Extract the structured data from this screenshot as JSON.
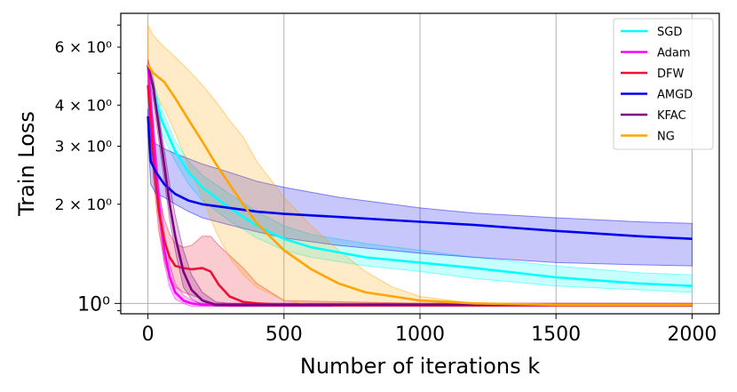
{
  "chart_data": {
    "type": "line",
    "title": "",
    "xlabel": "Number of iterations k",
    "ylabel": "Train Loss",
    "yscale": "log",
    "xlim": [
      -100,
      2100
    ],
    "ylim": [
      0.93,
      7.6
    ],
    "grid": true,
    "legend_position": "top-right",
    "x_ticks": [
      {
        "value": 0,
        "label": "0"
      },
      {
        "value": 500,
        "label": "500"
      },
      {
        "value": 1000,
        "label": "1000"
      },
      {
        "value": 1500,
        "label": "1500"
      },
      {
        "value": 2000,
        "label": "2000"
      }
    ],
    "y_ticks": [
      {
        "value": 1,
        "label": "10⁰",
        "major": true
      },
      {
        "value": 2,
        "label": "2 × 10⁰",
        "major": false
      },
      {
        "value": 3,
        "label": "3 × 10⁰",
        "major": false
      },
      {
        "value": 4,
        "label": "4 × 10⁰",
        "major": false
      },
      {
        "value": 6,
        "label": "6 × 10⁰",
        "major": false
      }
    ],
    "series": [
      {
        "name": "SGD",
        "color": "#00ffff",
        "x": [
          0,
          20,
          50,
          100,
          150,
          200,
          300,
          400,
          500,
          600,
          800,
          1000,
          1200,
          1500,
          1800,
          2000
        ],
        "mean": [
          5.2,
          4.5,
          3.6,
          2.9,
          2.5,
          2.25,
          1.95,
          1.72,
          1.57,
          1.48,
          1.38,
          1.33,
          1.28,
          1.2,
          1.15,
          1.13
        ],
        "upper": [
          5.3,
          4.7,
          3.9,
          3.1,
          2.7,
          2.45,
          2.15,
          1.9,
          1.72,
          1.62,
          1.52,
          1.45,
          1.38,
          1.3,
          1.24,
          1.22
        ],
        "lower": [
          5.0,
          4.2,
          3.3,
          2.7,
          2.3,
          2.05,
          1.78,
          1.58,
          1.45,
          1.38,
          1.3,
          1.25,
          1.19,
          1.13,
          1.1,
          1.08
        ]
      },
      {
        "name": "Adam",
        "color": "#ff00ff",
        "x": [
          0,
          20,
          40,
          60,
          80,
          100,
          130,
          160,
          200,
          300,
          500,
          1000,
          2000
        ],
        "mean": [
          5.3,
          3.2,
          2.0,
          1.45,
          1.2,
          1.08,
          1.02,
          1.0,
          0.99,
          0.99,
          0.99,
          0.99,
          0.99
        ],
        "upper": [
          5.5,
          3.6,
          2.3,
          1.65,
          1.32,
          1.15,
          1.06,
          1.02,
          1.0,
          1.0,
          1.0,
          1.0,
          1.0
        ],
        "lower": [
          5.0,
          2.9,
          1.8,
          1.32,
          1.12,
          1.03,
          1.0,
          0.98,
          0.98,
          0.98,
          0.98,
          0.98,
          0.98
        ]
      },
      {
        "name": "DFW",
        "color": "#ee1133",
        "x": [
          0,
          20,
          40,
          60,
          80,
          100,
          130,
          160,
          200,
          230,
          260,
          300,
          350,
          400,
          500,
          1000,
          2000
        ],
        "mean": [
          4.6,
          2.7,
          1.9,
          1.55,
          1.38,
          1.3,
          1.28,
          1.27,
          1.28,
          1.25,
          1.14,
          1.05,
          1.01,
          1.0,
          0.99,
          0.99,
          0.99
        ],
        "upper": [
          4.8,
          3.0,
          2.15,
          1.8,
          1.62,
          1.52,
          1.48,
          1.5,
          1.6,
          1.6,
          1.5,
          1.4,
          1.28,
          1.15,
          1.02,
          1.0,
          1.0
        ],
        "lower": [
          4.4,
          2.4,
          1.65,
          1.35,
          1.2,
          1.12,
          1.08,
          1.06,
          1.03,
          1.0,
          0.99,
          0.98,
          0.98,
          0.98,
          0.98,
          0.98,
          0.98
        ]
      },
      {
        "name": "AMGD",
        "color": "#0000ee",
        "x": [
          0,
          10,
          30,
          60,
          100,
          150,
          200,
          300,
          400,
          500,
          700,
          1000,
          1200,
          1500,
          1800,
          2000
        ],
        "mean": [
          3.7,
          2.7,
          2.5,
          2.3,
          2.15,
          2.05,
          2.0,
          1.95,
          1.9,
          1.87,
          1.83,
          1.77,
          1.73,
          1.66,
          1.6,
          1.57
        ],
        "upper": [
          3.9,
          3.1,
          3.05,
          2.95,
          2.85,
          2.75,
          2.65,
          2.5,
          2.35,
          2.25,
          2.1,
          1.95,
          1.88,
          1.82,
          1.77,
          1.75
        ],
        "lower": [
          3.3,
          2.3,
          2.15,
          2.1,
          2.0,
          1.9,
          1.82,
          1.73,
          1.65,
          1.58,
          1.5,
          1.42,
          1.38,
          1.33,
          1.31,
          1.3
        ]
      },
      {
        "name": "KFAC",
        "color": "#800080",
        "x": [
          0,
          20,
          50,
          80,
          100,
          130,
          160,
          200,
          250,
          300,
          500,
          1000,
          2000
        ],
        "mean": [
          5.3,
          4.5,
          3.0,
          2.0,
          1.6,
          1.25,
          1.1,
          1.02,
          0.99,
          0.99,
          0.99,
          0.99,
          0.99
        ],
        "upper": [
          5.5,
          4.8,
          3.3,
          2.3,
          1.85,
          1.45,
          1.22,
          1.08,
          1.01,
          1.0,
          1.0,
          1.0,
          1.0
        ],
        "lower": [
          5.0,
          4.1,
          2.7,
          1.8,
          1.45,
          1.12,
          1.03,
          0.99,
          0.98,
          0.98,
          0.98,
          0.98,
          0.98
        ]
      },
      {
        "name": "NG",
        "color": "#ffa500",
        "x": [
          0,
          20,
          60,
          100,
          150,
          200,
          250,
          300,
          350,
          400,
          500,
          600,
          700,
          800,
          900,
          1000,
          1200,
          1500,
          2000
        ],
        "mean": [
          5.3,
          5.0,
          4.7,
          4.2,
          3.6,
          3.1,
          2.65,
          2.3,
          2.0,
          1.75,
          1.45,
          1.27,
          1.15,
          1.08,
          1.05,
          1.02,
          1.0,
          0.99,
          0.99
        ],
        "upper": [
          7.0,
          6.5,
          6.0,
          5.6,
          5.1,
          4.6,
          4.1,
          3.6,
          3.2,
          2.7,
          2.1,
          1.72,
          1.45,
          1.25,
          1.12,
          1.05,
          1.0,
          1.0,
          1.0
        ],
        "lower": [
          4.8,
          4.4,
          3.9,
          3.3,
          2.6,
          2.1,
          1.65,
          1.38,
          1.22,
          1.12,
          1.02,
          0.99,
          0.98,
          0.98,
          0.98,
          0.98,
          0.98,
          0.98,
          0.98
        ]
      }
    ]
  }
}
